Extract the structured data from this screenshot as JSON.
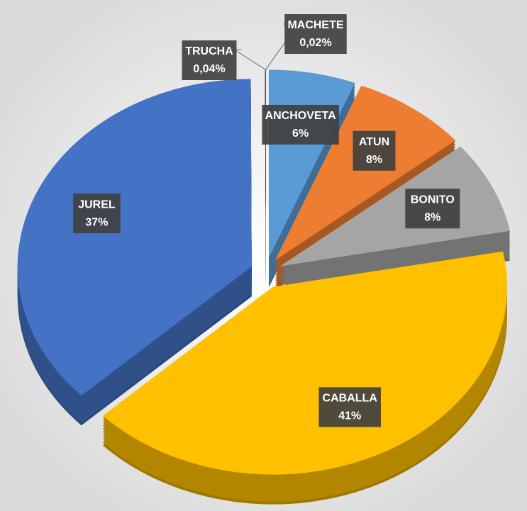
{
  "chart_data": {
    "type": "pie",
    "categories": [
      "ANCHOVETA",
      "ATUN",
      "BONITO",
      "CABALLA",
      "JUREL",
      "TRUCHA",
      "MACHETE"
    ],
    "values": [
      6,
      8,
      8,
      41,
      37,
      0.04,
      0.02
    ],
    "value_labels": [
      "6%",
      "8%",
      "8%",
      "41%",
      "37%",
      "0,04%",
      "0,02%"
    ],
    "colors": [
      "#5b9bd5",
      "#ed7d31",
      "#a5a5a5",
      "#ffc000",
      "#4472c4",
      "#255e91",
      "#9e480e"
    ]
  }
}
